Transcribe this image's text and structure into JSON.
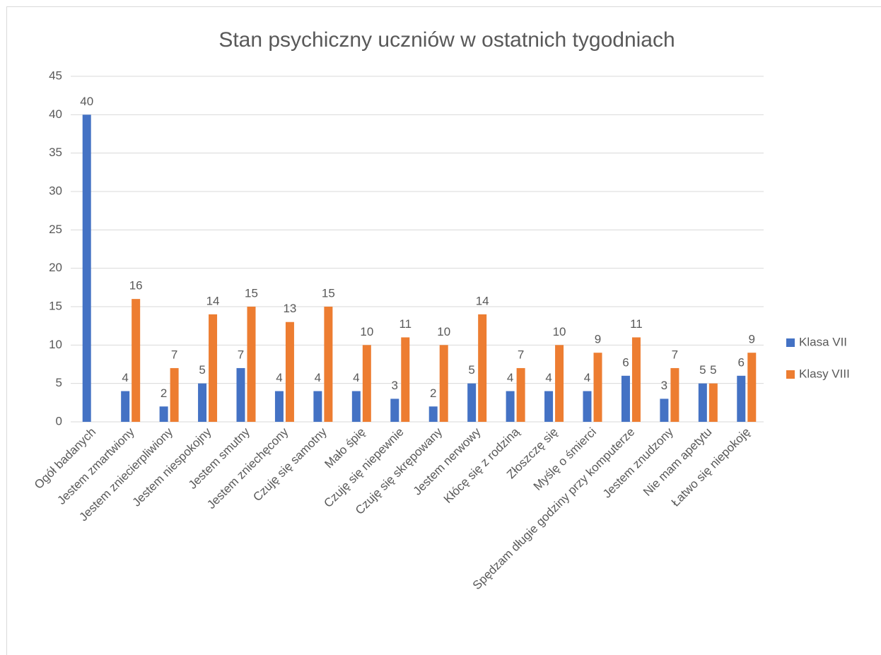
{
  "chart_data": {
    "type": "bar",
    "title": "Stan psychiczny uczniów w ostatnich tygodniach",
    "categories": [
      "Ogół badanych",
      "Jestem zmartwiony",
      "Jestem zniecierpliwiony",
      "Jestem niespokojny",
      "Jestem smutny",
      "Jestem zniechęcony",
      "Czuję się samotny",
      "Mało śpię",
      "Czuję się niepewnie",
      "Czuję się skrępowany",
      "Jestem nerwowy",
      "Kłócę się z rodziną",
      "Złoszczę się",
      "Myślę o śmierci",
      "Spędzam długie godziny przy komputerze",
      "Jestem znudzony",
      "Nie mam apetytu",
      "Łatwo się niepokoję"
    ],
    "series": [
      {
        "name": "Klasa VII",
        "color": "#4472c4",
        "values": [
          40,
          4,
          2,
          5,
          7,
          4,
          4,
          4,
          3,
          2,
          5,
          4,
          4,
          4,
          6,
          3,
          5,
          6
        ]
      },
      {
        "name": "Klasy VIII",
        "color": "#ed7d31",
        "values": [
          null,
          16,
          7,
          14,
          15,
          13,
          15,
          10,
          11,
          10,
          14,
          7,
          10,
          9,
          11,
          7,
          5,
          9
        ]
      }
    ],
    "ylim": [
      0,
      45
    ],
    "yticks": [
      0,
      5,
      10,
      15,
      20,
      25,
      30,
      35,
      40,
      45
    ],
    "grid": true,
    "legend": "right"
  }
}
